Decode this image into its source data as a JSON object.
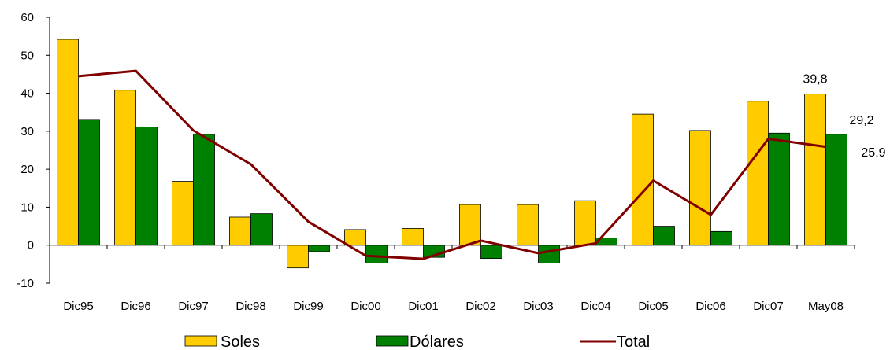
{
  "chart_data": {
    "type": "bar",
    "categories": [
      "Dic95",
      "Dic96",
      "Dic97",
      "Dic98",
      "Dic99",
      "Dic00",
      "Dic01",
      "Dic02",
      "Dic03",
      "Dic04",
      "Dic05",
      "Dic06",
      "Dic07",
      "May08"
    ],
    "series": [
      {
        "name": "Soles",
        "type": "bar",
        "color": "#FFCC00",
        "values": [
          54.2,
          40.8,
          16.8,
          7.4,
          -6.0,
          4.1,
          4.4,
          10.7,
          10.7,
          11.7,
          34.5,
          30.2,
          37.9,
          39.8
        ]
      },
      {
        "name": "Dólares",
        "type": "bar",
        "color": "#008000",
        "values": [
          33.1,
          31.1,
          29.2,
          8.3,
          -1.7,
          -4.7,
          -3.2,
          -3.5,
          -4.7,
          1.9,
          5.0,
          3.6,
          29.5,
          29.2
        ]
      },
      {
        "name": "Total",
        "type": "line",
        "color": "#800000",
        "values": [
          44.5,
          45.9,
          30.2,
          21.3,
          6.2,
          -2.8,
          -3.6,
          1.2,
          -2.1,
          0.5,
          17.0,
          8.0,
          28.0,
          25.9
        ]
      }
    ],
    "data_labels": [
      {
        "series": "Soles",
        "category": "May08",
        "text": "39,8"
      },
      {
        "series": "Dólares",
        "category": "May08",
        "text": "29,2"
      },
      {
        "series": "Total",
        "category": "May08",
        "text": "25,9"
      }
    ],
    "yticks": [
      "60",
      "50",
      "40",
      "30",
      "20",
      "10",
      "0",
      "-10"
    ],
    "ytick_values": [
      60,
      50,
      40,
      30,
      20,
      10,
      0,
      -10
    ],
    "ylim": [
      -10,
      60
    ],
    "grid": false,
    "legend": "bottom",
    "title": "",
    "xlabel": "",
    "ylabel": ""
  }
}
